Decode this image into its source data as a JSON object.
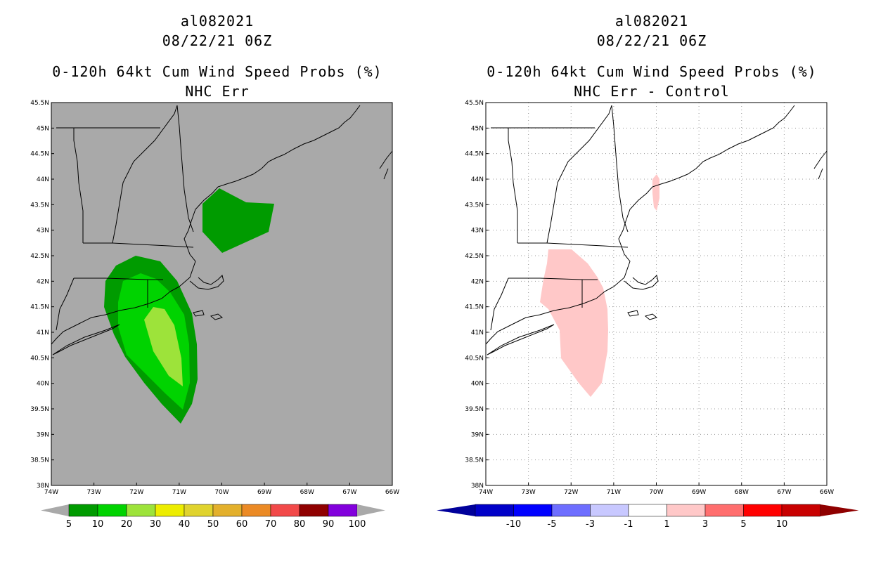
{
  "left_panel": {
    "title_storm": "al082021",
    "title_time": "08/22/21 06Z",
    "title_product": "0-120h 64kt Cum Wind Speed Probs (%)",
    "title_sub": "NHC Err",
    "background_color": "#a9a9a9",
    "colorbar": {
      "labels": [
        "5",
        "10",
        "20",
        "30",
        "40",
        "50",
        "60",
        "70",
        "80",
        "90",
        "100"
      ],
      "colors": [
        "#009b00",
        "#00d300",
        "#9de33a",
        "#eded00",
        "#e0d32e",
        "#e3b02c",
        "#eb8a25",
        "#f24949",
        "#8f0000",
        "#8200dc"
      ],
      "end_color": "#a9a9a9"
    },
    "contours": [
      {
        "level": "5%",
        "color": "#009b00"
      },
      {
        "level": "10%",
        "color": "#00d300"
      },
      {
        "level": "20%",
        "color": "#9de33a"
      }
    ]
  },
  "right_panel": {
    "title_storm": "al082021",
    "title_time": "08/22/21 06Z",
    "title_product": "0-120h 64kt Cum Wind Speed Probs (%)",
    "title_sub": "NHC Err - Control",
    "background_color": "#ffffff",
    "colorbar": {
      "labels": [
        "-10",
        "-5",
        "-3",
        "-1",
        "1",
        "3",
        "5",
        "10"
      ],
      "colors": [
        "#0000c8",
        "#0000ff",
        "#6e6eff",
        "#c8c8ff",
        "#ffffff",
        "#ffc8c8",
        "#ff6e6e",
        "#ff0000",
        "#c80000"
      ],
      "low_end_color": "#00009b",
      "high_end_color": "#8f0000"
    },
    "contours": [
      {
        "level": "1 to 3",
        "color": "#ffc8c8"
      }
    ]
  },
  "map": {
    "lat_labels": [
      "45.5N",
      "45N",
      "44.5N",
      "44N",
      "43.5N",
      "43N",
      "42.5N",
      "42N",
      "41.5N",
      "41N",
      "40.5N",
      "40N",
      "39.5N",
      "39N",
      "38.5N",
      "38N"
    ],
    "lon_labels": [
      "74W",
      "73W",
      "72W",
      "71W",
      "70W",
      "69W",
      "68W",
      "67W",
      "66W"
    ],
    "lat_values": [
      45.5,
      45,
      44.5,
      44,
      43.5,
      43,
      42.5,
      42,
      41.5,
      41,
      40.5,
      40,
      39.5,
      39,
      38.5,
      38
    ],
    "lon_values": [
      -74,
      -73,
      -72,
      -71,
      -70,
      -69,
      -68,
      -67,
      -66
    ],
    "lat_range": [
      38,
      45.5
    ],
    "lon_range": [
      -74,
      -66
    ]
  }
}
